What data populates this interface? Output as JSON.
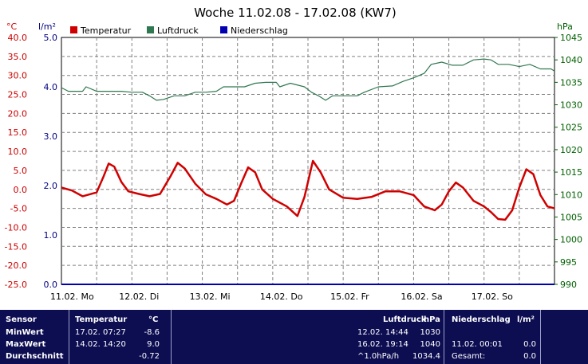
{
  "chart_data": {
    "type": "line",
    "title": "Woche 11.02.08 - 17.02.08 (KW7)",
    "axes": {
      "temperature": {
        "label": "°C",
        "color": "#ff0000",
        "range": [
          -25,
          40
        ],
        "ticks": [
          "40.0",
          "35.0",
          "30.0",
          "25.0",
          "20.0",
          "15.0",
          "10.0",
          "5.0",
          "0.0",
          "-5.0",
          "-10.0",
          "-15.0",
          "-20.0",
          "-25.0"
        ]
      },
      "precipitation": {
        "label": "l/m²",
        "color": "#0000a0",
        "range": [
          0,
          5
        ],
        "ticks": [
          "5.0",
          "4.0",
          "3.0",
          "2.0",
          "1.0",
          "0.0"
        ]
      },
      "pressure": {
        "label": "hPa",
        "color": "#006000",
        "range": [
          990,
          1045
        ],
        "ticks": [
          "1045",
          "1040",
          "1035",
          "1030",
          "1025",
          "1020",
          "1015",
          "1010",
          "1005",
          "1000",
          "995",
          "990"
        ]
      }
    },
    "x_ticks": [
      "11.02. Mo",
      "12.02. Di",
      "13.02. Mi",
      "14.02. Do",
      "15.02. Fr",
      "16.02. Sa",
      "17.02. So"
    ],
    "x_range_days": [
      0,
      7
    ],
    "grid": true,
    "series": [
      {
        "name": "Temperatur",
        "color": "#d00000",
        "axis": "temperature",
        "points": [
          [
            0.0,
            0.5
          ],
          [
            0.15,
            -0.3
          ],
          [
            0.3,
            -1.8
          ],
          [
            0.5,
            -0.8
          ],
          [
            0.6,
            3.5
          ],
          [
            0.67,
            6.8
          ],
          [
            0.75,
            6.0
          ],
          [
            0.85,
            2.0
          ],
          [
            0.95,
            -0.5
          ],
          [
            1.1,
            -1.2
          ],
          [
            1.25,
            -1.8
          ],
          [
            1.4,
            -1.2
          ],
          [
            1.55,
            3.5
          ],
          [
            1.65,
            7.0
          ],
          [
            1.75,
            5.5
          ],
          [
            1.9,
            1.5
          ],
          [
            2.05,
            -1.3
          ],
          [
            2.2,
            -2.5
          ],
          [
            2.35,
            -4.0
          ],
          [
            2.45,
            -3.0
          ],
          [
            2.55,
            1.5
          ],
          [
            2.65,
            5.8
          ],
          [
            2.75,
            4.5
          ],
          [
            2.85,
            0.0
          ],
          [
            3.0,
            -2.5
          ],
          [
            3.2,
            -4.5
          ],
          [
            3.35,
            -7.0
          ],
          [
            3.45,
            -2.0
          ],
          [
            3.57,
            7.5
          ],
          [
            3.68,
            4.5
          ],
          [
            3.8,
            0.0
          ],
          [
            4.0,
            -2.2
          ],
          [
            4.2,
            -2.5
          ],
          [
            4.4,
            -2.0
          ],
          [
            4.6,
            -0.5
          ],
          [
            4.8,
            -0.5
          ],
          [
            5.0,
            -1.5
          ],
          [
            5.15,
            -4.5
          ],
          [
            5.3,
            -5.5
          ],
          [
            5.4,
            -4.0
          ],
          [
            5.5,
            -0.5
          ],
          [
            5.6,
            1.8
          ],
          [
            5.7,
            0.5
          ],
          [
            5.85,
            -3.0
          ],
          [
            6.0,
            -4.5
          ],
          [
            6.1,
            -6.0
          ],
          [
            6.2,
            -7.8
          ],
          [
            6.3,
            -8.0
          ],
          [
            6.4,
            -5.5
          ],
          [
            6.5,
            0.5
          ],
          [
            6.6,
            5.3
          ],
          [
            6.7,
            4.0
          ],
          [
            6.8,
            -1.5
          ],
          [
            6.9,
            -4.5
          ],
          [
            7.0,
            -5.0
          ]
        ]
      },
      {
        "name": "Luftdruck",
        "color": "#307850",
        "axis": "pressure",
        "points": [
          [
            0.0,
            1033.8
          ],
          [
            0.1,
            1033.0
          ],
          [
            0.3,
            1033.0
          ],
          [
            0.35,
            1034.0
          ],
          [
            0.5,
            1033.0
          ],
          [
            0.7,
            1033.0
          ],
          [
            0.85,
            1033.0
          ],
          [
            1.0,
            1032.8
          ],
          [
            1.15,
            1032.8
          ],
          [
            1.25,
            1032.0
          ],
          [
            1.35,
            1031.0
          ],
          [
            1.45,
            1031.2
          ],
          [
            1.6,
            1032.0
          ],
          [
            1.75,
            1032.0
          ],
          [
            1.9,
            1032.8
          ],
          [
            2.05,
            1032.8
          ],
          [
            2.2,
            1033.0
          ],
          [
            2.3,
            1034.0
          ],
          [
            2.45,
            1034.0
          ],
          [
            2.6,
            1034.0
          ],
          [
            2.75,
            1034.8
          ],
          [
            2.9,
            1035.0
          ],
          [
            3.05,
            1035.0
          ],
          [
            3.1,
            1034.0
          ],
          [
            3.25,
            1034.8
          ],
          [
            3.45,
            1034.0
          ],
          [
            3.55,
            1032.8
          ],
          [
            3.65,
            1032.0
          ],
          [
            3.75,
            1031.0
          ],
          [
            3.85,
            1032.0
          ],
          [
            4.05,
            1032.0
          ],
          [
            4.2,
            1032.0
          ],
          [
            4.3,
            1032.8
          ],
          [
            4.5,
            1034.0
          ],
          [
            4.7,
            1034.2
          ],
          [
            4.85,
            1035.2
          ],
          [
            5.0,
            1036.0
          ],
          [
            5.15,
            1037.0
          ],
          [
            5.25,
            1039.0
          ],
          [
            5.4,
            1039.5
          ],
          [
            5.55,
            1038.8
          ],
          [
            5.7,
            1038.8
          ],
          [
            5.85,
            1040.0
          ],
          [
            6.0,
            1040.2
          ],
          [
            6.1,
            1040.0
          ],
          [
            6.2,
            1039.0
          ],
          [
            6.35,
            1039.0
          ],
          [
            6.5,
            1038.5
          ],
          [
            6.65,
            1039.0
          ],
          [
            6.8,
            1038.0
          ],
          [
            6.95,
            1038.0
          ],
          [
            7.0,
            1037.5
          ]
        ]
      },
      {
        "name": "Niederschlag",
        "color": "#0000b0",
        "axis": "precipitation",
        "points": [
          [
            0,
            0
          ],
          [
            7,
            0
          ]
        ]
      }
    ]
  },
  "stats": {
    "headers": {
      "sensor": "Sensor",
      "temperatur": "Temperatur",
      "temp_unit": "°C",
      "luftdruck": "Luftdruck",
      "press_unit": "hPa",
      "niederschlag": "Niederschlag",
      "prec_unit": "l/m²"
    },
    "rows": [
      {
        "label": "MinWert",
        "temp_time": "17.02.  07:27",
        "temp_val": "-8.6",
        "press_time": "12.02.  14:44",
        "press_val": "1030",
        "prec_time": "",
        "prec_val": ""
      },
      {
        "label": "MaxWert",
        "temp_time": "14.02.  14:20",
        "temp_val": "9.0",
        "press_time": "16.02.  19:14",
        "press_val": "1040",
        "prec_time": "11.02.  00:01",
        "prec_val": "0.0"
      },
      {
        "label": "Durchschnitt",
        "temp_time": "",
        "temp_val": "-0.72",
        "press_time": "^1.0hPa/h",
        "press_val": "1034.4",
        "prec_time": "Gesamt:",
        "prec_val": "0.0"
      }
    ]
  }
}
